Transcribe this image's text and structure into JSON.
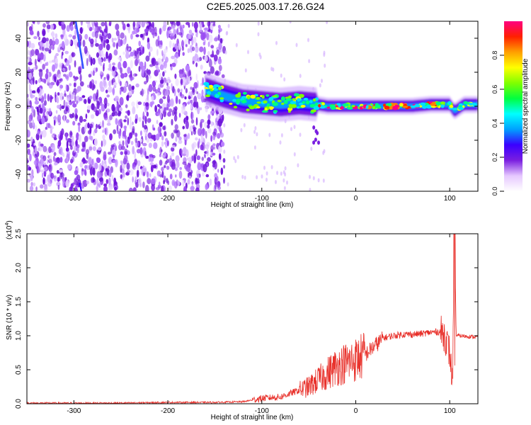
{
  "figure": {
    "title": "C2E5.2025.003.17.26.G24"
  },
  "chart_data": [
    {
      "type": "heatmap",
      "xlabel": "Height of straight line (km)",
      "ylabel": "Frequency (Hz)",
      "xlim": [
        -350,
        130
      ],
      "ylim": [
        -50,
        50
      ],
      "x_ticks": [
        -300,
        -200,
        -100,
        0,
        100
      ],
      "y_ticks": [
        40,
        20,
        0,
        -20,
        -40
      ],
      "colorbar": {
        "label": "Normalized spectral amplitude",
        "range": [
          0,
          1
        ],
        "ticks": [
          "0.0",
          "0.2",
          "0.4",
          "0.6",
          "0.8"
        ],
        "colors": [
          "#ffffff",
          "#e6c8ff",
          "#7a1fe0",
          "#3a00ff",
          "#00a0ff",
          "#00ffff",
          "#00ff40",
          "#80ff00",
          "#ffff00",
          "#ffa000",
          "#ff2000",
          "#ff0080"
        ]
      },
      "features": {
        "noise_region_x": [
          -350,
          -140
        ],
        "noise_color": "#7a1fe0",
        "carrier_line": {
          "x": [
            -160,
            -140,
            -120,
            -100,
            -80,
            -60,
            -40,
            -30,
            -20,
            0,
            20,
            40,
            60,
            80,
            95,
            100,
            105,
            115,
            130
          ],
          "y": [
            10,
            6,
            3,
            2,
            1,
            2,
            1,
            0,
            0,
            0,
            0,
            0,
            0,
            1,
            1,
            1,
            -3,
            1,
            1
          ],
          "peak_x_range": [
            -40,
            100
          ]
        }
      },
      "grid": false,
      "legend": "none"
    },
    {
      "type": "line",
      "xlabel": "Height of straight line (km)",
      "ylabel": "SNR (10 * v/v)",
      "ylabel_scale": "(x10",
      "ylabel_scale_exp": "4",
      "ylabel_scale_close": ")",
      "xlim": [
        -350,
        130
      ],
      "ylim": [
        0,
        2.5
      ],
      "x_ticks": [
        -300,
        -200,
        -100,
        0,
        100
      ],
      "y_ticks": [
        "0.0",
        "0.5",
        "1.0",
        "1.5",
        "2.0",
        "2.5"
      ],
      "series": [
        {
          "color": "#e8302a",
          "x": [
            -350,
            -300,
            -250,
            -200,
            -150,
            -120,
            -100,
            -80,
            -60,
            -50,
            -40,
            -30,
            -20,
            -10,
            0,
            10,
            20,
            30,
            40,
            50,
            60,
            70,
            80,
            90,
            95,
            100,
            103,
            105,
            107,
            110,
            130
          ],
          "y": [
            0.01,
            0.01,
            0.01,
            0.02,
            0.02,
            0.03,
            0.08,
            0.1,
            0.2,
            0.25,
            0.35,
            0.45,
            0.55,
            0.6,
            0.65,
            0.72,
            0.85,
            0.97,
            1.0,
            1.02,
            1.02,
            1.03,
            1.05,
            1.06,
            1.0,
            0.75,
            0.3,
            2.5,
            1.0,
            1.0,
            0.98
          ]
        }
      ],
      "grid": false,
      "legend": "none"
    }
  ]
}
